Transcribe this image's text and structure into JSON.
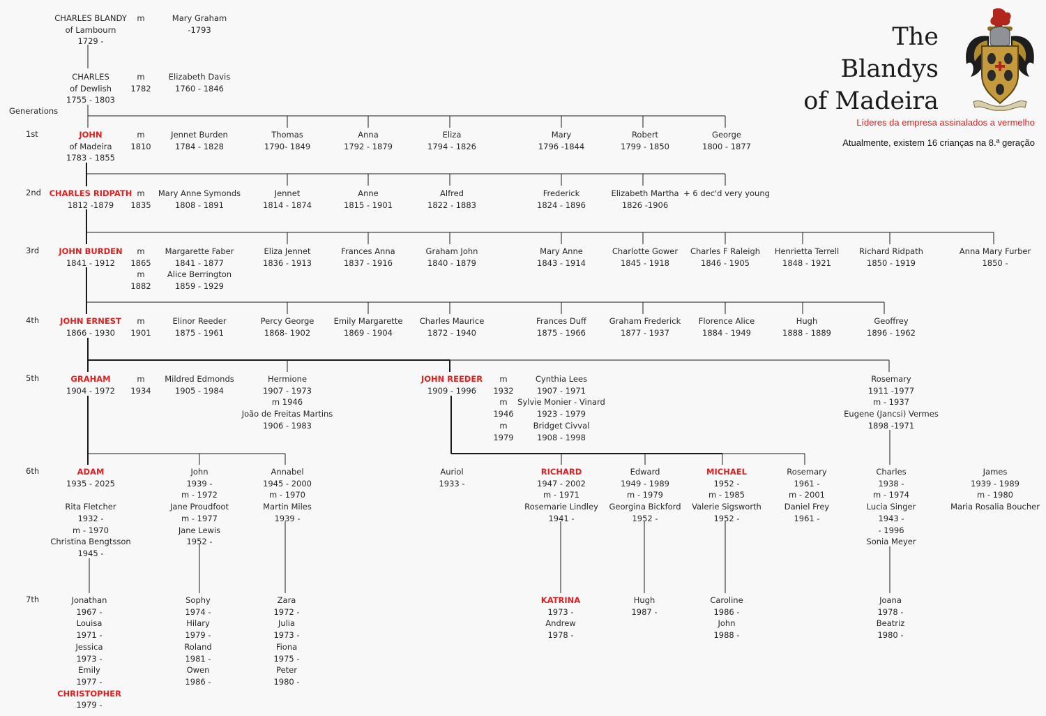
{
  "title": {
    "line1": "The Blandys",
    "line2": "of Madeira"
  },
  "notes": {
    "leaders": "Líderes da empresa assinalados a vermelho",
    "children": "Atualmente, existem 16 crianças na 8.ª geração"
  },
  "colors": {
    "leader": "#e02020",
    "lines": "#1a1a1a",
    "background": "#f8f8f8"
  },
  "crest": {
    "icon": "coat-of-arms-icon"
  },
  "generations": {
    "heading": "Generations",
    "labels": [
      "1st",
      "2nd",
      "3rd",
      "4th",
      "5th",
      "6th",
      "7th"
    ]
  },
  "people": [
    {
      "id": "charles-blandy",
      "lines": [
        {
          "t": "CHARLES BLANDY"
        },
        {
          "t": "of Lambourn"
        },
        {
          "t": "1729 -"
        }
      ]
    },
    {
      "id": "m-charles-blandy",
      "lines": [
        {
          "t": "m"
        }
      ]
    },
    {
      "id": "mary-graham",
      "lines": [
        {
          "t": "Mary Graham"
        },
        {
          "t": "-1793"
        }
      ]
    },
    {
      "id": "charles-dewlish",
      "lines": [
        {
          "t": "CHARLES"
        },
        {
          "t": "of Dewlish"
        },
        {
          "t": "1755 - 1803"
        }
      ]
    },
    {
      "id": "m-charles-dewlish",
      "lines": [
        {
          "t": "m"
        },
        {
          "t": "1782"
        }
      ]
    },
    {
      "id": "elizabeth-davis",
      "lines": [
        {
          "t": "Elizabeth Davis"
        },
        {
          "t": "1760 - 1846"
        }
      ]
    },
    {
      "id": "john-madeira",
      "lines": [
        {
          "t": "JOHN",
          "red": true
        },
        {
          "t": "of Madeira"
        },
        {
          "t": "1783 - 1855"
        }
      ]
    },
    {
      "id": "m-john",
      "lines": [
        {
          "t": "m"
        },
        {
          "t": "1810"
        }
      ]
    },
    {
      "id": "jennet-burden",
      "lines": [
        {
          "t": "Jennet Burden"
        },
        {
          "t": "1784 - 1828"
        }
      ]
    },
    {
      "id": "thomas",
      "lines": [
        {
          "t": "Thomas"
        },
        {
          "t": "1790- 1849"
        }
      ]
    },
    {
      "id": "anna",
      "lines": [
        {
          "t": "Anna"
        },
        {
          "t": "1792 - 1879"
        }
      ]
    },
    {
      "id": "eliza",
      "lines": [
        {
          "t": "Eliza"
        },
        {
          "t": "1794 - 1826"
        }
      ]
    },
    {
      "id": "mary",
      "lines": [
        {
          "t": "Mary"
        },
        {
          "t": "1796 -1844"
        }
      ]
    },
    {
      "id": "robert",
      "lines": [
        {
          "t": "Robert"
        },
        {
          "t": "1799 - 1850"
        }
      ]
    },
    {
      "id": "george",
      "lines": [
        {
          "t": "George"
        },
        {
          "t": "1800 - 1877"
        }
      ]
    },
    {
      "id": "charles-ridpath",
      "lines": [
        {
          "t": "CHARLES RIDPATH",
          "red": true
        },
        {
          "t": "1812 -1879"
        }
      ]
    },
    {
      "id": "m-charles-ridpath",
      "lines": [
        {
          "t": "m"
        },
        {
          "t": "1835"
        }
      ]
    },
    {
      "id": "mary-anne-symonds",
      "lines": [
        {
          "t": "Mary Anne Symonds"
        },
        {
          "t": "1808 - 1891"
        }
      ]
    },
    {
      "id": "jennet",
      "lines": [
        {
          "t": "Jennet"
        },
        {
          "t": "1814 - 1874"
        }
      ]
    },
    {
      "id": "anne",
      "lines": [
        {
          "t": "Anne"
        },
        {
          "t": "1815 - 1901"
        }
      ]
    },
    {
      "id": "alfred",
      "lines": [
        {
          "t": "Alfred"
        },
        {
          "t": "1822 - 1883"
        }
      ]
    },
    {
      "id": "frederick",
      "lines": [
        {
          "t": "Frederick"
        },
        {
          "t": "1824 - 1896"
        }
      ]
    },
    {
      "id": "elizabeth-martha",
      "lines": [
        {
          "t": "Elizabeth Martha"
        },
        {
          "t": "1826 -1906"
        }
      ]
    },
    {
      "id": "six-decd",
      "lines": [
        {
          "t": "+ 6 dec'd very young"
        }
      ]
    },
    {
      "id": "john-burden",
      "lines": [
        {
          "t": "JOHN BURDEN",
          "red": true
        },
        {
          "t": "1841 - 1912"
        }
      ]
    },
    {
      "id": "m-john-burden",
      "lines": [
        {
          "t": "m"
        },
        {
          "t": "1865"
        },
        {
          "t": "m"
        },
        {
          "t": "1882"
        }
      ]
    },
    {
      "id": "margarette-faber",
      "lines": [
        {
          "t": "Margarette Faber"
        },
        {
          "t": "1841 - 1877"
        },
        {
          "t": "Alice Berrington"
        },
        {
          "t": "1859 - 1929"
        }
      ]
    },
    {
      "id": "eliza-jennet",
      "lines": [
        {
          "t": "Eliza Jennet"
        },
        {
          "t": "1836 - 1913"
        }
      ]
    },
    {
      "id": "frances-anna",
      "lines": [
        {
          "t": "Frances Anna"
        },
        {
          "t": "1837 - 1916"
        }
      ]
    },
    {
      "id": "graham-john",
      "lines": [
        {
          "t": "Graham John"
        },
        {
          "t": "1840 - 1879"
        }
      ]
    },
    {
      "id": "mary-anne",
      "lines": [
        {
          "t": "Mary Anne"
        },
        {
          "t": "1843 - 1914"
        }
      ]
    },
    {
      "id": "charlotte-gower",
      "lines": [
        {
          "t": "Charlotte Gower"
        },
        {
          "t": "1845 - 1918"
        }
      ]
    },
    {
      "id": "charles-f-raleigh",
      "lines": [
        {
          "t": "Charles F Raleigh"
        },
        {
          "t": "1846 - 1905"
        }
      ]
    },
    {
      "id": "henrietta-terrell",
      "lines": [
        {
          "t": "Henrietta Terrell"
        },
        {
          "t": "1848 - 1921"
        }
      ]
    },
    {
      "id": "richard-ridpath",
      "lines": [
        {
          "t": "Richard Ridpath"
        },
        {
          "t": "1850 - 1919"
        }
      ]
    },
    {
      "id": "anna-mary-furber",
      "lines": [
        {
          "t": "Anna Mary Furber"
        },
        {
          "t": "1850 -"
        }
      ]
    },
    {
      "id": "john-ernest",
      "lines": [
        {
          "t": "JOHN ERNEST",
          "red": true
        },
        {
          "t": "1866 - 1930"
        }
      ]
    },
    {
      "id": "m-john-ernest",
      "lines": [
        {
          "t": "m"
        },
        {
          "t": "1901"
        }
      ]
    },
    {
      "id": "elinor-reeder",
      "lines": [
        {
          "t": "Elinor Reeder"
        },
        {
          "t": "1875 - 1961"
        }
      ]
    },
    {
      "id": "percy-george",
      "lines": [
        {
          "t": "Percy George"
        },
        {
          "t": "1868- 1902"
        }
      ]
    },
    {
      "id": "emily-margarette",
      "lines": [
        {
          "t": "Emily Margarette"
        },
        {
          "t": "1869 - 1904"
        }
      ]
    },
    {
      "id": "charles-maurice",
      "lines": [
        {
          "t": "Charles Maurice"
        },
        {
          "t": "1872 - 1940"
        }
      ]
    },
    {
      "id": "frances-duff",
      "lines": [
        {
          "t": "Frances Duff"
        },
        {
          "t": "1875 - 1966"
        }
      ]
    },
    {
      "id": "graham-frederick",
      "lines": [
        {
          "t": "Graham Frederick"
        },
        {
          "t": "1877 - 1937"
        }
      ]
    },
    {
      "id": "florence-alice",
      "lines": [
        {
          "t": "Florence Alice"
        },
        {
          "t": "1884 - 1949"
        }
      ]
    },
    {
      "id": "hugh-4",
      "lines": [
        {
          "t": "Hugh"
        },
        {
          "t": "1888 - 1889"
        }
      ]
    },
    {
      "id": "geoffrey",
      "lines": [
        {
          "t": "Geoffrey"
        },
        {
          "t": "1896 - 1962"
        }
      ]
    },
    {
      "id": "graham",
      "lines": [
        {
          "t": "GRAHAM",
          "red": true
        },
        {
          "t": "1904 - 1972"
        }
      ]
    },
    {
      "id": "m-graham",
      "lines": [
        {
          "t": "m"
        },
        {
          "t": "1934"
        }
      ]
    },
    {
      "id": "mildred-edmonds",
      "lines": [
        {
          "t": "Mildred Edmonds"
        },
        {
          "t": "1905 - 1984"
        }
      ]
    },
    {
      "id": "hermione",
      "lines": [
        {
          "t": "Hermione"
        },
        {
          "t": "1907 - 1973"
        },
        {
          "t": "m 1946"
        },
        {
          "t": "João de Freitas Martins"
        },
        {
          "t": "1906 - 1983"
        }
      ]
    },
    {
      "id": "john-reeder",
      "lines": [
        {
          "t": "JOHN REEDER",
          "red": true
        },
        {
          "t": "1909 - 1996"
        }
      ]
    },
    {
      "id": "m-john-reeder",
      "lines": [
        {
          "t": "m"
        },
        {
          "t": "1932"
        },
        {
          "t": "m"
        },
        {
          "t": "1946"
        },
        {
          "t": "m"
        },
        {
          "t": "1979"
        }
      ]
    },
    {
      "id": "cynthia-lees",
      "lines": [
        {
          "t": "Cynthia Lees"
        },
        {
          "t": "1907 - 1971"
        },
        {
          "t": "Sylvie Monier - Vinard"
        },
        {
          "t": "1923 - 1979"
        },
        {
          "t": "Bridget Civval"
        },
        {
          "t": "1908 - 1998"
        }
      ]
    },
    {
      "id": "rosemary-5",
      "lines": [
        {
          "t": "Rosemary"
        },
        {
          "t": "1911 -1977"
        },
        {
          "t": "m - 1937"
        },
        {
          "t": "Eugene (Jancsi) Vermes"
        },
        {
          "t": "1898 -1971"
        }
      ]
    },
    {
      "id": "adam",
      "lines": [
        {
          "t": "ADAM",
          "red": true
        },
        {
          "t": "1935 - 2025"
        },
        {
          "t": ""
        },
        {
          "t": "Rita Fletcher"
        },
        {
          "t": "1932 -"
        },
        {
          "t": "m - 1970"
        },
        {
          "t": "Christina Bengtsson"
        },
        {
          "t": "1945 -"
        }
      ]
    },
    {
      "id": "john-6",
      "lines": [
        {
          "t": "John"
        },
        {
          "t": "1939 -"
        },
        {
          "t": "m - 1972"
        },
        {
          "t": "Jane Proudfoot"
        },
        {
          "t": "m - 1977"
        },
        {
          "t": "Jane Lewis"
        },
        {
          "t": "1952 -"
        }
      ]
    },
    {
      "id": "annabel",
      "lines": [
        {
          "t": "Annabel"
        },
        {
          "t": "1945 - 2000"
        },
        {
          "t": "m - 1970"
        },
        {
          "t": "Martin Miles"
        },
        {
          "t": "1939 -"
        }
      ]
    },
    {
      "id": "auriol",
      "lines": [
        {
          "t": "Auriol"
        },
        {
          "t": "1933 -"
        }
      ]
    },
    {
      "id": "richard",
      "lines": [
        {
          "t": "RICHARD",
          "red": true
        },
        {
          "t": "1947 - 2002"
        },
        {
          "t": "m - 1971"
        },
        {
          "t": "Rosemarie Lindley"
        },
        {
          "t": "1941 -"
        }
      ]
    },
    {
      "id": "edward",
      "lines": [
        {
          "t": "Edward"
        },
        {
          "t": "1949 - 1989"
        },
        {
          "t": "m - 1979"
        },
        {
          "t": "Georgina Bickford"
        },
        {
          "t": "1952 -"
        }
      ]
    },
    {
      "id": "michael",
      "lines": [
        {
          "t": "MICHAEL",
          "red": true
        },
        {
          "t": "1952 -"
        },
        {
          "t": "m - 1985"
        },
        {
          "t": "Valerie Sigsworth"
        },
        {
          "t": "1952 -"
        }
      ]
    },
    {
      "id": "rosemary-6",
      "lines": [
        {
          "t": "Rosemary"
        },
        {
          "t": "1961 -"
        },
        {
          "t": "m - 2001"
        },
        {
          "t": "Daniel Frey"
        },
        {
          "t": "1961 -"
        }
      ]
    },
    {
      "id": "charles-6",
      "lines": [
        {
          "t": "Charles"
        },
        {
          "t": "1938 -"
        },
        {
          "t": "m - 1974"
        },
        {
          "t": "Lucia Singer"
        },
        {
          "t": "1943 -"
        },
        {
          "t": "- 1996"
        },
        {
          "t": "Sonia Meyer"
        }
      ]
    },
    {
      "id": "james",
      "lines": [
        {
          "t": "James"
        },
        {
          "t": "1939 - 1989"
        },
        {
          "t": "m - 1980"
        },
        {
          "t": "Maria Rosalia Boucher"
        }
      ]
    },
    {
      "id": "adam-children",
      "lines": [
        {
          "t": "Jonathan"
        },
        {
          "t": "1967 -"
        },
        {
          "t": "Louisa"
        },
        {
          "t": "1971 -"
        },
        {
          "t": "Jessica"
        },
        {
          "t": "1973 -"
        },
        {
          "t": "Emily"
        },
        {
          "t": "1977 -"
        },
        {
          "t": "CHRISTOPHER",
          "red": true
        },
        {
          "t": "1979 -"
        }
      ]
    },
    {
      "id": "john-children",
      "lines": [
        {
          "t": "Sophy"
        },
        {
          "t": "1974 -"
        },
        {
          "t": "Hilary"
        },
        {
          "t": "1979 -"
        },
        {
          "t": "Roland"
        },
        {
          "t": "1981 -"
        },
        {
          "t": "Owen"
        },
        {
          "t": "1986 -"
        }
      ]
    },
    {
      "id": "annabel-children",
      "lines": [
        {
          "t": "Zara"
        },
        {
          "t": "1972 -"
        },
        {
          "t": "Julia"
        },
        {
          "t": "1973 -"
        },
        {
          "t": "Fiona"
        },
        {
          "t": "1975 -"
        },
        {
          "t": "Peter"
        },
        {
          "t": "1980 -"
        }
      ]
    },
    {
      "id": "richard-children",
      "lines": [
        {
          "t": "KATRINA",
          "red": true
        },
        {
          "t": "1973 -"
        },
        {
          "t": "Andrew"
        },
        {
          "t": "1978 -"
        }
      ]
    },
    {
      "id": "edward-children",
      "lines": [
        {
          "t": "Hugh"
        },
        {
          "t": "1987 -"
        }
      ]
    },
    {
      "id": "michael-children",
      "lines": [
        {
          "t": "Caroline"
        },
        {
          "t": "1986 -"
        },
        {
          "t": "John"
        },
        {
          "t": "1988 -"
        }
      ]
    },
    {
      "id": "charles-children",
      "lines": [
        {
          "t": "Joana"
        },
        {
          "t": "1978 -"
        },
        {
          "t": "Beatriz"
        },
        {
          "t": "1980 -"
        }
      ]
    }
  ]
}
